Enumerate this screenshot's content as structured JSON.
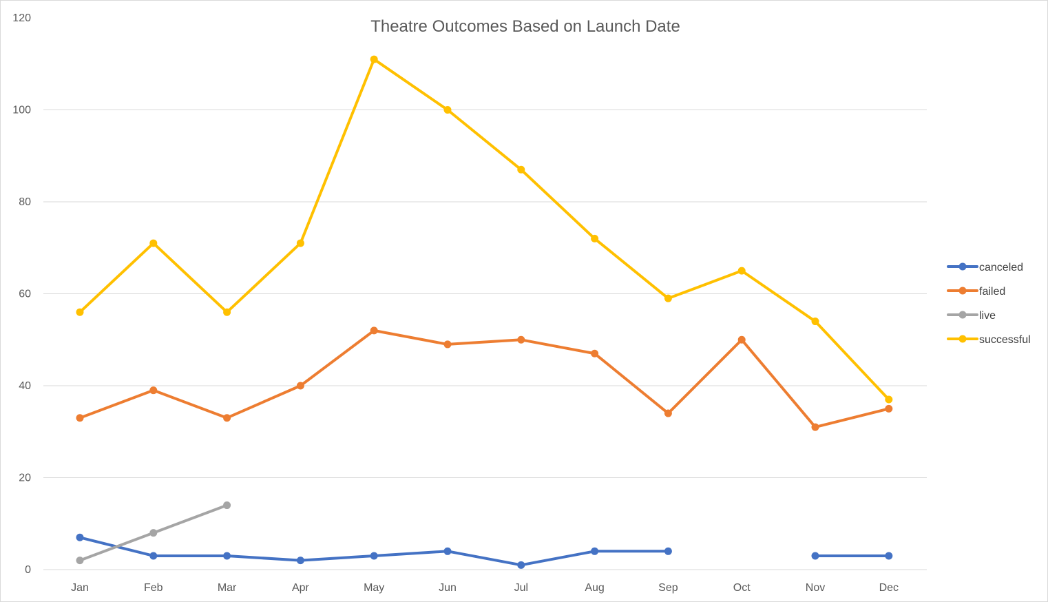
{
  "chart_data": {
    "type": "line",
    "title": "Theatre Outcomes Based on Launch Date",
    "xlabel": "",
    "ylabel": "",
    "categories": [
      "Jan",
      "Feb",
      "Mar",
      "Apr",
      "May",
      "Jun",
      "Jul",
      "Aug",
      "Sep",
      "Oct",
      "Nov",
      "Dec"
    ],
    "ylim": [
      0,
      120
    ],
    "yticks": [
      0,
      20,
      40,
      60,
      80,
      100,
      120
    ],
    "grid": "horizontal",
    "legend_position": "right",
    "series": [
      {
        "name": "canceled",
        "color": "#4472C4",
        "values": [
          7,
          3,
          3,
          2,
          3,
          4,
          1,
          4,
          4,
          null,
          3,
          3
        ]
      },
      {
        "name": "failed",
        "color": "#ED7D31",
        "values": [
          33,
          39,
          33,
          40,
          52,
          49,
          50,
          47,
          34,
          50,
          31,
          35
        ]
      },
      {
        "name": "live",
        "color": "#A5A5A5",
        "values": [
          2,
          8,
          14,
          null,
          null,
          null,
          null,
          null,
          null,
          null,
          null,
          null
        ]
      },
      {
        "name": "successful",
        "color": "#FFC000",
        "values": [
          56,
          71,
          56,
          71,
          111,
          100,
          87,
          72,
          59,
          65,
          54,
          37
        ]
      }
    ]
  }
}
